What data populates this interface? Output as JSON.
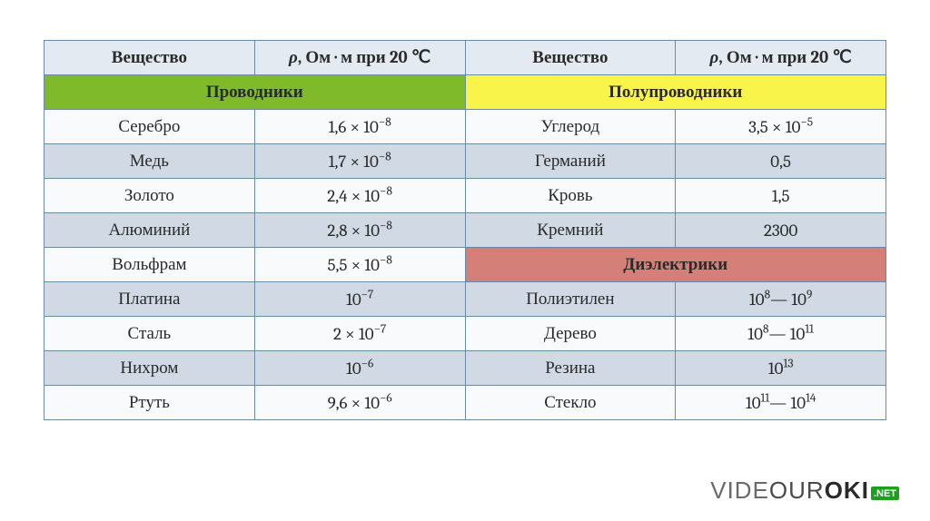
{
  "table": {
    "border_color": "#6b8aa3",
    "header_bg": "#e3eaf1",
    "row_even_bg": "#f8fafc",
    "row_odd_bg": "#d0d9e4",
    "headers": {
      "substance": "Вещество",
      "rho_html": "<span class='rho'>ρ</span>, Ом · м при <b>20</b> ℃"
    },
    "categories": {
      "conductors": {
        "label": "Проводники",
        "bg": "#7eba2a"
      },
      "semiconductors": {
        "label": "Полупроводники",
        "bg": "#f8f44a"
      },
      "dielectrics": {
        "label": "Диэлектрики",
        "bg": "#d48078"
      }
    },
    "left_rows": [
      {
        "name": "Серебро",
        "value_html": "1,6 × 10<sup>−8</sup>"
      },
      {
        "name": "Медь",
        "value_html": "1,7 × 10<sup>−8</sup>"
      },
      {
        "name": "Золото",
        "value_html": "2,4 × 10<sup>−8</sup>"
      },
      {
        "name": "Алюминий",
        "value_html": "2,8 × 10<sup>−8</sup>"
      },
      {
        "name": "Вольфрам",
        "value_html": "5,5 × 10<sup>−8</sup>"
      },
      {
        "name": "Платина",
        "value_html": "10<sup>−7</sup>"
      },
      {
        "name": "Сталь",
        "value_html": "2 × 10<sup>−7</sup>"
      },
      {
        "name": "Нихром",
        "value_html": "10<sup>−6</sup>"
      },
      {
        "name": "Ртуть",
        "value_html": "9,6 × 10<sup>−6</sup>"
      }
    ],
    "right_rows_top": [
      {
        "name": "Углерод",
        "value_html": "3,5 × 10<sup>−5</sup>"
      },
      {
        "name": "Германий",
        "value_html": "0,5"
      },
      {
        "name": "Кровь",
        "value_html": "1,5"
      },
      {
        "name": "Кремний",
        "value_html": "2300"
      }
    ],
    "right_rows_bot": [
      {
        "name": "Полиэтилен",
        "value_html": "10<sup>8</sup>— 10<sup>9</sup>"
      },
      {
        "name": "Дерево",
        "value_html": "10<sup>8</sup>— 10<sup>11</sup>"
      },
      {
        "name": "Резина",
        "value_html": "10<sup>13</sup>"
      },
      {
        "name": "Стекло",
        "value_html": "10<sup>11</sup>— 10<sup>14</sup>"
      }
    ]
  },
  "watermark": {
    "part1": "VIDE",
    "part2": "OUR",
    "part3": "OKI",
    "badge": ".NET"
  }
}
